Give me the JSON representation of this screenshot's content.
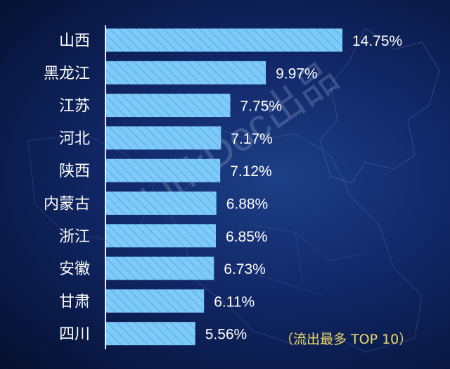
{
  "watermark": "LinkDoc出品",
  "chart_data": {
    "type": "bar",
    "orientation": "horizontal",
    "categories": [
      "山西",
      "黑龙江",
      "江苏",
      "河北",
      "陕西",
      "内蒙古",
      "浙江",
      "安徽",
      "甘肃",
      "四川"
    ],
    "values": [
      14.75,
      9.97,
      7.75,
      7.17,
      7.12,
      6.88,
      6.85,
      6.73,
      6.11,
      5.56
    ],
    "value_labels": [
      "14.75%",
      "9.97%",
      "7.75%",
      "7.17%",
      "7.12%",
      "6.88%",
      "6.85%",
      "6.73%",
      "6.11%",
      "5.56%"
    ],
    "annotation": "（流出最多 TOP 10）",
    "xlim": [
      0,
      14.75
    ],
    "colors": {
      "bar": "#7ecbfa",
      "hatch": "#5aaae6",
      "axis": "#e8f0ff",
      "annotation": "#f0dc6a"
    }
  }
}
